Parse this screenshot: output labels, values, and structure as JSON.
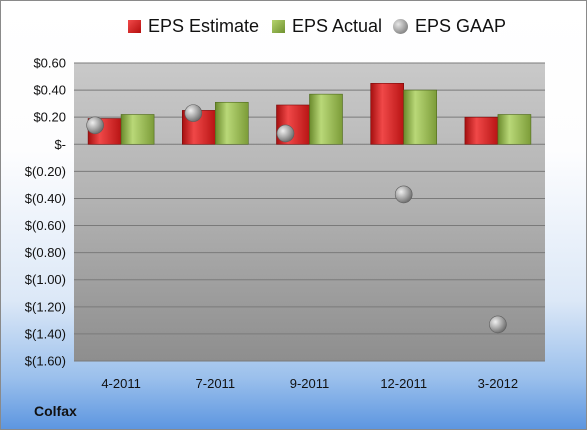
{
  "company": "Colfax",
  "chart_data": {
    "type": "bar",
    "categories": [
      "4-2011",
      "7-2011",
      "9-2011",
      "12-2011",
      "3-2012"
    ],
    "series": [
      {
        "name": "EPS Estimate",
        "kind": "bar",
        "values": [
          0.19,
          0.25,
          0.29,
          0.45,
          0.2
        ],
        "color": "#d42424"
      },
      {
        "name": "EPS Actual",
        "kind": "bar",
        "values": [
          0.22,
          0.31,
          0.37,
          0.4,
          0.22
        ],
        "color": "#8db045"
      },
      {
        "name": "EPS GAAP",
        "kind": "marker",
        "values": [
          0.14,
          0.23,
          0.08,
          -0.37,
          -1.33
        ],
        "color": "#9a9a9a"
      }
    ],
    "ylim": [
      -1.6,
      0.6
    ],
    "yticks": [
      0.6,
      0.4,
      0.2,
      0,
      -0.2,
      -0.4,
      -0.6,
      -0.8,
      -1.0,
      -1.2,
      -1.4,
      -1.6
    ],
    "ytick_labels": [
      "$0.60",
      "$0.40",
      "$0.20",
      "$-",
      "$(0.20)",
      "$(0.40)",
      "$(0.60)",
      "$(0.80)",
      "$(1.00)",
      "$(1.20)",
      "$(1.40)",
      "$(1.60)"
    ],
    "grid": true,
    "legend": "top",
    "title": "",
    "xlabel": "",
    "ylabel": ""
  }
}
